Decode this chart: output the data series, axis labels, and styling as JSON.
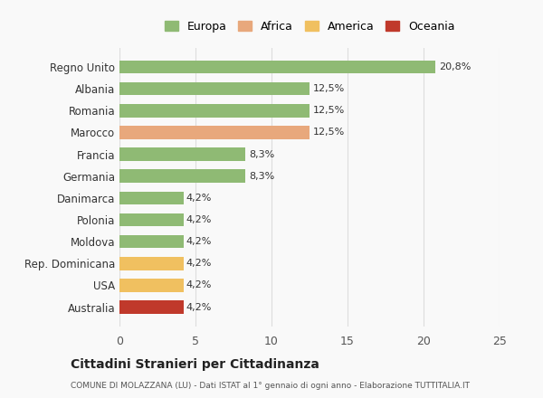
{
  "categories": [
    "Australia",
    "USA",
    "Rep. Dominicana",
    "Moldova",
    "Polonia",
    "Danimarca",
    "Germania",
    "Francia",
    "Marocco",
    "Romania",
    "Albania",
    "Regno Unito"
  ],
  "values": [
    4.2,
    4.2,
    4.2,
    4.2,
    4.2,
    4.2,
    8.3,
    8.3,
    12.5,
    12.5,
    12.5,
    20.8
  ],
  "labels": [
    "4,2%",
    "4,2%",
    "4,2%",
    "4,2%",
    "4,2%",
    "4,2%",
    "8,3%",
    "8,3%",
    "12,5%",
    "12,5%",
    "12,5%",
    "20,8%"
  ],
  "colors": [
    "#c0392b",
    "#f0c060",
    "#f0c060",
    "#8fba74",
    "#8fba74",
    "#8fba74",
    "#8fba74",
    "#8fba74",
    "#e8a87c",
    "#8fba74",
    "#8fba74",
    "#8fba74"
  ],
  "legend": [
    {
      "label": "Europa",
      "color": "#8fba74"
    },
    {
      "label": "Africa",
      "color": "#e8a87c"
    },
    {
      "label": "America",
      "color": "#f0c060"
    },
    {
      "label": "Oceania",
      "color": "#c0392b"
    }
  ],
  "xlim": [
    0,
    25
  ],
  "xticks": [
    0,
    5,
    10,
    15,
    20,
    25
  ],
  "title": "Cittadini Stranieri per Cittadinanza",
  "subtitle": "COMUNE DI MOLAZZANA (LU) - Dati ISTAT al 1° gennaio di ogni anno - Elaborazione TUTTITALIA.IT",
  "bg_color": "#f9f9f9",
  "grid_color": "#dddddd"
}
